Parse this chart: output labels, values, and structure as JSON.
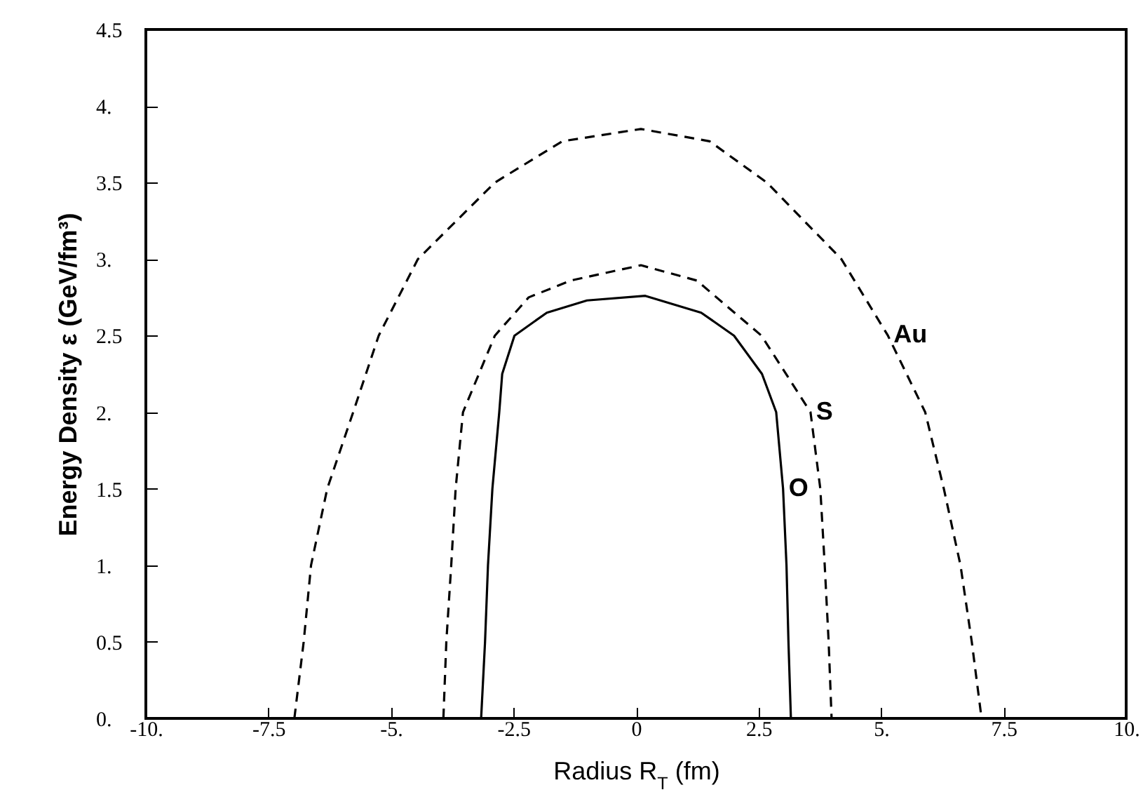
{
  "chart_data": {
    "type": "line",
    "xlabel": "Radius R$_{T}$  (fm)",
    "ylabel": "Energy Density ε  (GeV/fm³)",
    "xlim": [
      -10,
      10
    ],
    "ylim": [
      0,
      4.5
    ],
    "xticks": [
      {
        "value": -10,
        "label": "-10."
      },
      -7.5,
      {
        "value": -5,
        "label": "-5."
      },
      -2.5,
      0,
      2.5,
      {
        "value": 5,
        "label": "5."
      },
      7.5,
      {
        "value": 10,
        "label": "10."
      }
    ],
    "yticks": [
      {
        "value": 0,
        "label": "0."
      },
      0.5,
      {
        "value": 1,
        "label": "1."
      },
      1.5,
      {
        "value": 2,
        "label": "2."
      },
      2.5,
      {
        "value": 3,
        "label": "3."
      },
      3.5,
      {
        "value": 4,
        "label": "4."
      },
      4.5
    ],
    "grid": false,
    "series": [
      {
        "name": "O",
        "color": "#000000",
        "line_style": "solid",
        "x": [
          -3.16,
          -3.08,
          -3.02,
          -2.93,
          -2.79,
          -2.73,
          -2.48,
          -1.82,
          -1,
          0.19,
          1.33,
          2.0,
          2.57,
          2.86,
          3.0,
          3.07,
          3.11,
          3.16
        ],
        "values": [
          0,
          0.5,
          1,
          1.5,
          2,
          2.25,
          2.5,
          2.65,
          2.73,
          2.76,
          2.65,
          2.5,
          2.25,
          2,
          1.5,
          1,
          0.5,
          0
        ]
      },
      {
        "name": "S",
        "color": "#000000",
        "line_style": "dashed",
        "x": [
          -3.93,
          -3.87,
          -3.77,
          -3.68,
          -3.53,
          -2.88,
          -2.19,
          -1.33,
          0.1,
          1.24,
          2.56,
          3.56,
          3.76,
          3.85,
          3.93,
          3.99
        ],
        "values": [
          0,
          0.5,
          1,
          1.5,
          2,
          2.5,
          2.75,
          2.86,
          2.96,
          2.86,
          2.5,
          2,
          1.5,
          1,
          0.5,
          0
        ]
      },
      {
        "name": "Au",
        "color": "#000000",
        "line_style": "dashed",
        "x": [
          -6.97,
          -6.78,
          -6.63,
          -6.3,
          -5.77,
          -5.25,
          -4.45,
          -2.88,
          -1.5,
          0.1,
          1.5,
          2.67,
          4.19,
          5.14,
          5.9,
          6.28,
          6.62,
          6.85,
          7.05
        ],
        "values": [
          0,
          0.5,
          1,
          1.5,
          2,
          2.5,
          3,
          3.5,
          3.77,
          3.85,
          3.77,
          3.5,
          3,
          2.5,
          2,
          1.5,
          1,
          0.5,
          0
        ]
      }
    ]
  }
}
